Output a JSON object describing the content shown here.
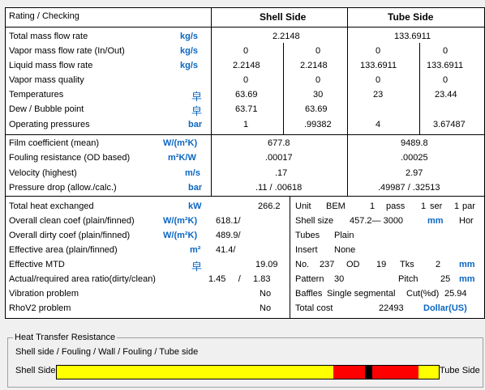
{
  "header": {
    "rating": "Rating / Checking",
    "shell": "Shell Side",
    "tube": "Tube Side"
  },
  "rows1": [
    {
      "label": "Total mass flow rate",
      "unit": "kg/s",
      "s1": "2.2148",
      "t1": "133.6911"
    },
    {
      "label": "Vapor mass flow rate  (In/Out)",
      "unit": "kg/s",
      "s1": "0",
      "s2": "0",
      "t1": "0",
      "t2": "0"
    },
    {
      "label": "Liquid mass flow rate",
      "unit": "kg/s",
      "s1": "2.2148",
      "s2": "2.2148",
      "t1": "133.6911",
      "t2": "133.6911"
    },
    {
      "label": "Vapor mass quality",
      "unit": "",
      "s1": "0",
      "s2": "0",
      "t1": "0",
      "t2": "0"
    },
    {
      "label": "Temperatures",
      "unit": "",
      "s1": "63.69",
      "s2": "30",
      "t1": "23",
      "t2": "23.44"
    },
    {
      "label": "Dew / Bubble point",
      "unit": "",
      "s1": "63.71",
      "s2": "63.69",
      "t1": "",
      "t2": ""
    },
    {
      "label": "Operating pressures",
      "unit": "bar",
      "s1": "1",
      "s2": ".99382",
      "t1": "4",
      "t2": "3.67487"
    }
  ],
  "rows2": [
    {
      "label": "Film coefficient (mean)",
      "unit": "W/(m²K)",
      "s": "677.8",
      "t": "9489.8"
    },
    {
      "label": "Fouling resistance (OD based)",
      "unit": "m²K/W",
      "s": ".00017",
      "t": ".00025"
    },
    {
      "label": "Velocity (highest)",
      "unit": "m/s",
      "s": ".17",
      "t": "2.97"
    },
    {
      "label": "Pressure drop (allow./calc.)",
      "unit": "bar",
      "s": ".11  /  .00618",
      "t": ".49987  /  .32513"
    }
  ],
  "rows3": [
    {
      "label": "Total heat exchanged",
      "unit": "kW",
      "v": "266.2"
    },
    {
      "label": "Overall clean coef (plain/finned)",
      "unit": "W/(m²K)",
      "v": "618.1/"
    },
    {
      "label": "Overall dirty coef (plain/finned)",
      "unit": "W/(m²K)",
      "v": "489.9/"
    },
    {
      "label": "Effective area (plain/finned)",
      "unit": "m²",
      "v": "41.4/"
    },
    {
      "label": "Effective MTD",
      "unit": "",
      "v": "19.09"
    },
    {
      "label": "Actual/required area ratio(dirty/clean)",
      "unit": "",
      "v": "1.45     /     1.83"
    },
    {
      "label": "Vibration problem",
      "unit": "",
      "v": "No"
    },
    {
      "label": "RhoV2 problem",
      "unit": "",
      "v": "No"
    }
  ],
  "geometry": {
    "unit_label": "Unit",
    "unit_type": "BEM",
    "pass_count": "1",
    "pass_label": "pass",
    "ser_count": "1",
    "ser_label": "ser",
    "par_count": "1",
    "par_label": "par",
    "shell_size_label": "Shell size",
    "shell_size": "457.2—  3000",
    "shell_unit": "mm",
    "shell_orient": "Hor",
    "tubes_label": "Tubes",
    "tubes": "Plain",
    "insert_label": "Insert",
    "insert": "None",
    "no_label": "No.",
    "no": "237",
    "od_label": "OD",
    "od": "19",
    "tks_label": "Tks",
    "tks": "2",
    "tks_unit": "mm",
    "pattern_label": "Pattern",
    "pattern": "30",
    "pitch_label": "Pitch",
    "pitch": "25",
    "pitch_unit": "mm",
    "baffles_label": "Baffles",
    "baffles": "Single segmental",
    "cut_label": "Cut(%d)",
    "cut": "25.94",
    "cost_label": "Total cost",
    "cost": "22493",
    "cost_unit": "Dollar(US)"
  },
  "resistance": {
    "legend": "Heat Transfer Resistance",
    "caption": "Shell side / Fouling / Wall / Fouling / Tube side",
    "left_label": "Shell Side",
    "right_label": "Tube Side",
    "segments": [
      {
        "name": "shell-side",
        "fraction": 0.724,
        "color": "#ffff00"
      },
      {
        "name": "shell-fouling",
        "fraction": 0.083,
        "color": "#ff0000"
      },
      {
        "name": "wall",
        "fraction": 0.019,
        "color": "#000000"
      },
      {
        "name": "tube-fouling",
        "fraction": 0.121,
        "color": "#ff0000"
      },
      {
        "name": "tube-side",
        "fraction": 0.053,
        "color": "#ffff00"
      }
    ]
  },
  "colors": {
    "unit_blue": "#0b66c2"
  },
  "icons": {
    "temperature_unit": "temperature-unit-glyph-icon"
  }
}
